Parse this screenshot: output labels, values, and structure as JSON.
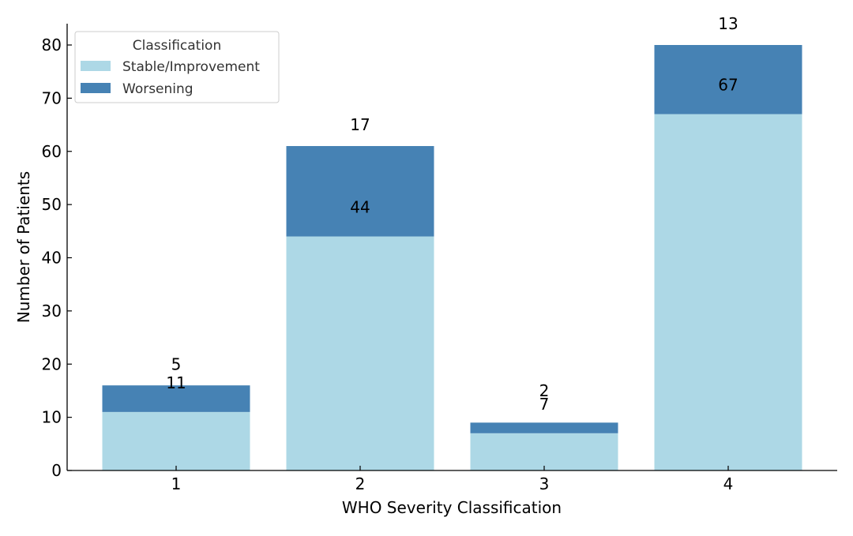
{
  "chart_data": {
    "type": "bar",
    "stacked": true,
    "title": "",
    "xlabel": "WHO Severity Classification",
    "ylabel": "Number of Patients",
    "categories": [
      "1",
      "2",
      "3",
      "4"
    ],
    "series": [
      {
        "name": "Stable/Improvement",
        "values": [
          11,
          44,
          7,
          67
        ],
        "color": "#add8e6"
      },
      {
        "name": "Worsening",
        "values": [
          5,
          17,
          2,
          13
        ],
        "color": "#4682b4"
      }
    ],
    "ylim": [
      0,
      84
    ],
    "yticks": [
      0,
      10,
      20,
      30,
      40,
      50,
      60,
      70,
      80
    ],
    "legend": {
      "title": "Classification",
      "placement": "top-left"
    },
    "grid": false
  }
}
